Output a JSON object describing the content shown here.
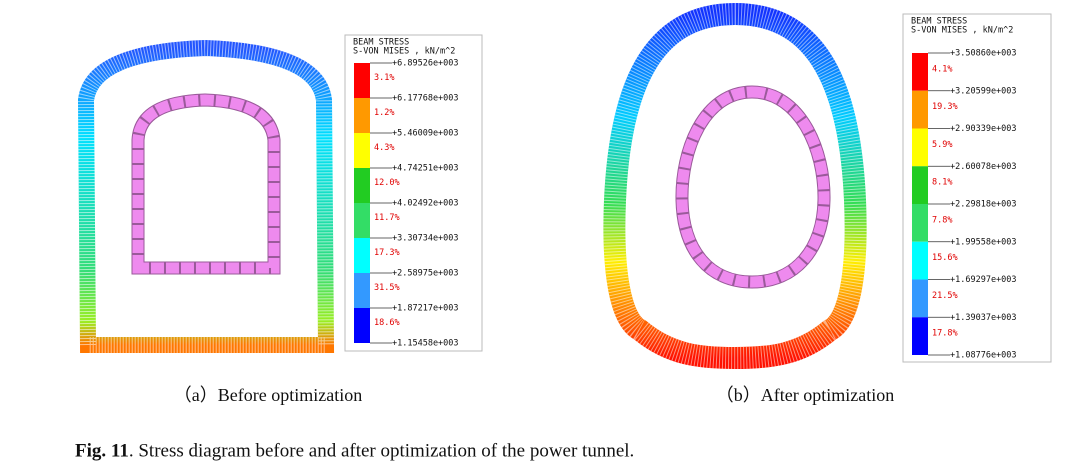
{
  "panels": [
    {
      "legend": {
        "title": "BEAM STRESS",
        "subtitle": "S-VON MISES , kN/m^2",
        "levels": [
          "+6.89526e+003",
          "+6.17768e+003",
          "+5.46009e+003",
          "+4.74251e+003",
          "+4.02492e+003",
          "+3.30734e+003",
          "+2.58975e+003",
          "+1.87217e+003",
          "+1.15458e+003"
        ],
        "percents": [
          "3.1%",
          "1.2%",
          "4.3%",
          "12.0%",
          "11.7%",
          "17.3%",
          "31.5%",
          "18.6%"
        ]
      },
      "caption": "（a）Before optimization"
    },
    {
      "legend": {
        "title": "BEAM STRESS",
        "subtitle": "S-VON MISES , kN/m^2",
        "levels": [
          "+3.50860e+003",
          "+3.20599e+003",
          "+2.90339e+003",
          "+2.60078e+003",
          "+2.29818e+003",
          "+1.99558e+003",
          "+1.69297e+003",
          "+1.39037e+003",
          "+1.08776e+003"
        ],
        "percents": [
          "4.1%",
          "19.3%",
          "5.9%",
          "8.1%",
          "7.8%",
          "15.6%",
          "21.5%",
          "17.8%"
        ]
      },
      "caption": "（b）After optimization"
    }
  ],
  "figure_caption": {
    "label": "Fig. 11",
    "text": ". Stress diagram before and after optimization of the power tunnel."
  }
}
